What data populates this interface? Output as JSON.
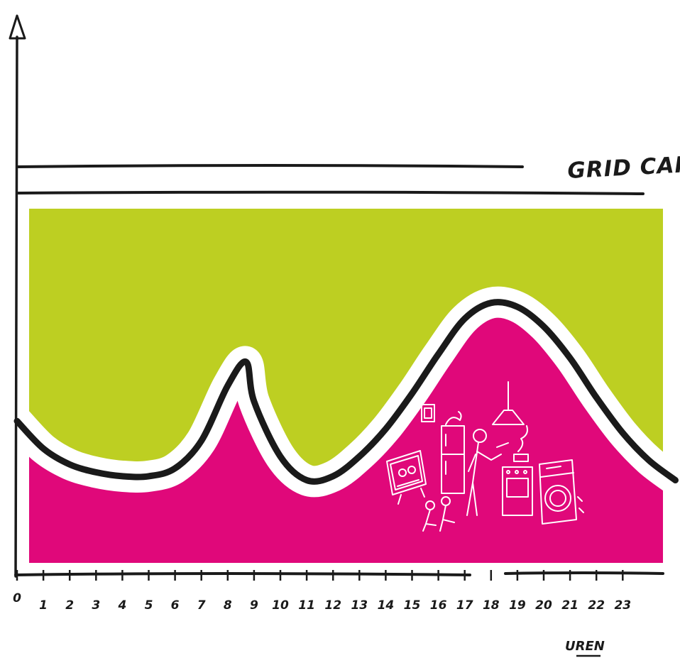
{
  "chart_data": {
    "type": "area",
    "title": "",
    "xlabel": "UREN",
    "ylabel": "",
    "grid": false,
    "xlim": [
      0,
      25
    ],
    "x_ticks": [
      "0",
      "1",
      "2",
      "3",
      "4",
      "5",
      "6",
      "7",
      "8",
      "9",
      "10",
      "11",
      "12",
      "13",
      "14",
      "15",
      "16",
      "17",
      "18",
      "19",
      "20",
      "21",
      "22",
      "23"
    ],
    "reference_line": {
      "name": "GRID CAPACITY",
      "value": 90
    },
    "series": [
      {
        "name": "",
        "x": [
          0,
          1,
          2,
          3,
          4,
          5,
          6,
          7,
          8,
          8.7,
          9,
          10,
          11,
          12,
          13,
          14,
          15,
          16,
          17,
          18,
          19,
          20,
          21,
          22,
          23,
          24,
          25
        ],
        "y": [
          36,
          29,
          25,
          23,
          22,
          22,
          24,
          31,
          45,
          51,
          41,
          27,
          21,
          22,
          27,
          34,
          43,
          53,
          62,
          66,
          65,
          60,
          52,
          42,
          33,
          26,
          21
        ]
      }
    ],
    "colors": {
      "capacity_fill": "#bdcf22",
      "demand_fill": "#e0087a",
      "line": "#1a1a1a",
      "halo": "#ffffff"
    }
  }
}
